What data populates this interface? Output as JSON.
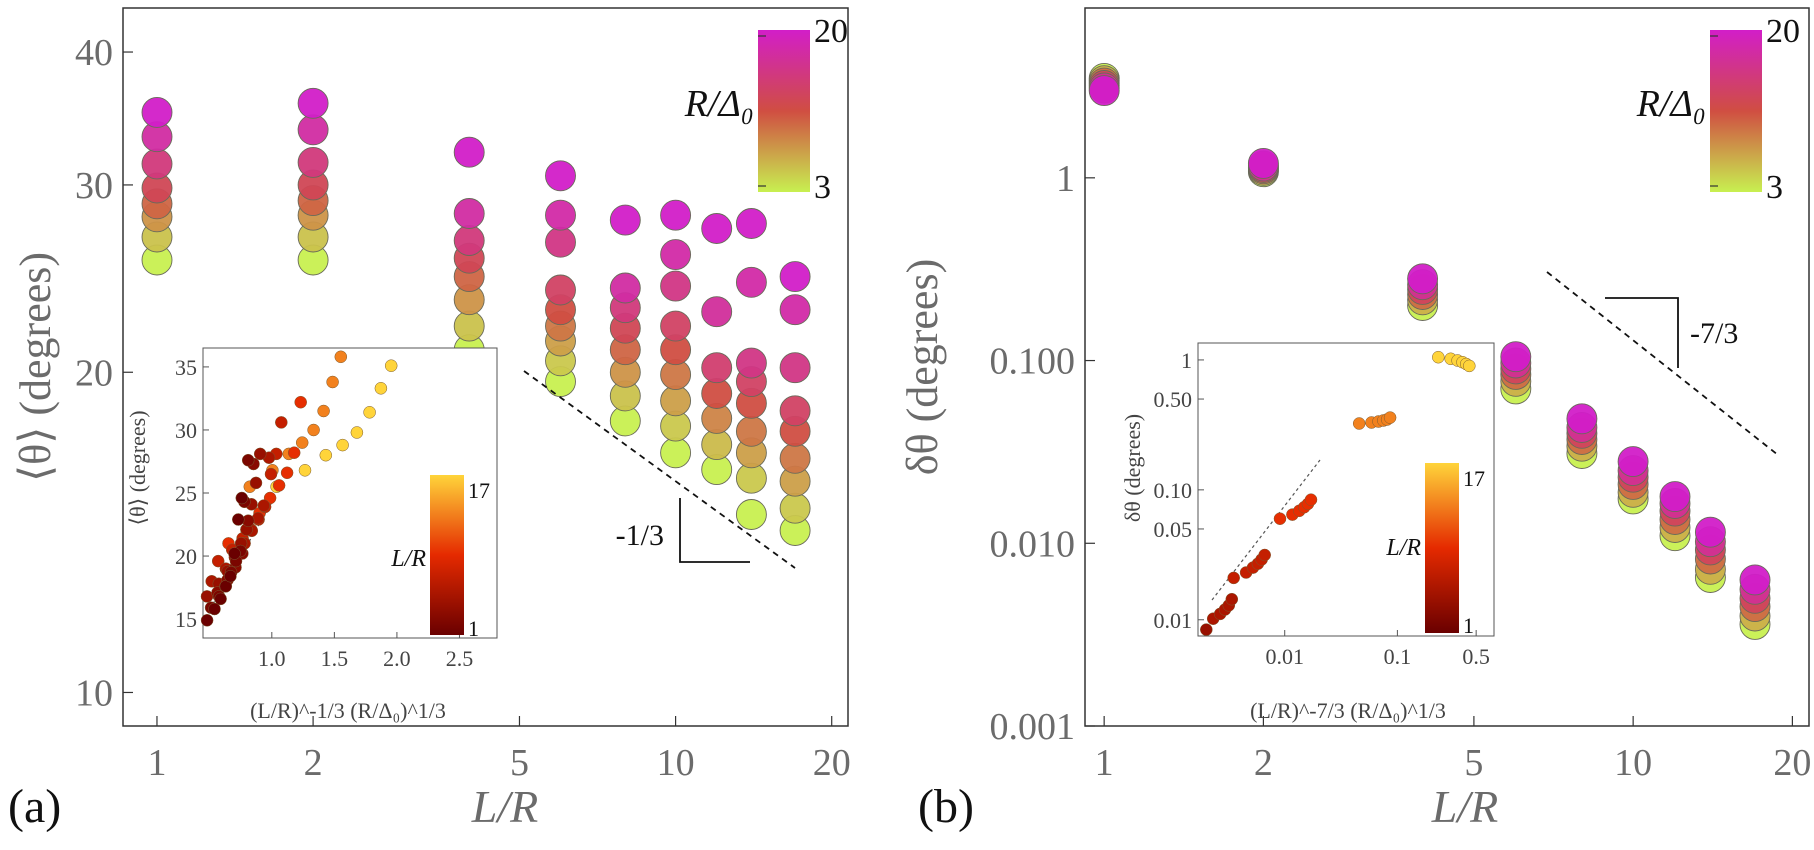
{
  "chart_data": [
    {
      "id": "a",
      "type": "scatter",
      "panel_label": "(a)",
      "xlabel": "L/R",
      "ylabel": "⟨θ⟩ (degrees)",
      "xscale": "log",
      "yscale": "log",
      "xlim": [
        0.86,
        21.5
      ],
      "ylim": [
        9.3,
        44
      ],
      "xticks": [
        {
          "v": 1,
          "label": "1"
        },
        {
          "v": 2,
          "label": "2"
        },
        {
          "v": 5,
          "label": "5"
        },
        {
          "v": 10,
          "label": "10"
        },
        {
          "v": 20,
          "label": "20"
        }
      ],
      "yticks": [
        {
          "v": 10,
          "label": "10"
        },
        {
          "v": 20,
          "label": "20"
        },
        {
          "v": 30,
          "label": "30"
        },
        {
          "v": 40,
          "label": "40"
        }
      ],
      "colorbar": {
        "label": "R/Δ₀",
        "min_label": "3",
        "max_label": "20",
        "colors": [
          "#c8f050",
          "#d04e42",
          "#d21ec8"
        ]
      },
      "slope": {
        "label": "-1/3"
      },
      "series": [
        {
          "x": 1,
          "y": [
            25.5,
            26.8,
            28.0,
            28.8,
            29.8,
            31.4,
            33.3,
            35.1
          ]
        },
        {
          "x": 2,
          "y": [
            25.5,
            26.8,
            28.1,
            29.0,
            30.0,
            31.5,
            33.8,
            35.8
          ]
        },
        {
          "x": 4,
          "y": [
            21.0,
            22.1,
            23.4,
            24.6,
            25.6,
            26.6,
            28.2,
            32.2
          ]
        },
        {
          "x": 6,
          "y": [
            19.6,
            20.5,
            21.4,
            22.1,
            22.9,
            23.9,
            26.5,
            28.1,
            30.6
          ]
        },
        {
          "x": 8,
          "y": [
            18.0,
            19.0,
            20.0,
            21.0,
            22.0,
            23.0,
            24.0,
            27.8
          ]
        },
        {
          "x": 10,
          "y": [
            16.8,
            17.8,
            18.8,
            19.9,
            21.0,
            22.1,
            24.1,
            25.8,
            28.1
          ]
        },
        {
          "x": 12,
          "y": [
            16.2,
            17.1,
            18.1,
            19.1,
            20.2,
            22.8,
            27.3
          ]
        },
        {
          "x": 14,
          "y": [
            14.7,
            15.9,
            16.8,
            17.6,
            18.7,
            19.6,
            20.4,
            24.3,
            27.6
          ]
        },
        {
          "x": 17,
          "y": [
            14.2,
            14.9,
            15.8,
            16.6,
            17.6,
            18.4,
            20.2,
            22.9,
            24.6
          ]
        }
      ],
      "inset": {
        "type": "scatter",
        "xlabel": "(L/R)^-1/3 (R/Δ₀)^1/3",
        "ylabel": "⟨θ⟩ (degrees)",
        "xticks": [
          {
            "v": 1.0,
            "label": "1.0"
          },
          {
            "v": 1.5,
            "label": "1.5"
          },
          {
            "v": 2.0,
            "label": "2.0"
          },
          {
            "v": 2.5,
            "label": "2.5"
          }
        ],
        "yticks": [
          {
            "v": 15,
            "label": "15"
          },
          {
            "v": 20,
            "label": "20"
          },
          {
            "v": 25,
            "label": "25"
          },
          {
            "v": 30,
            "label": "30"
          },
          {
            "v": 35,
            "label": "35"
          }
        ],
        "colorbar": {
          "label": "L/R",
          "min_label": "1",
          "max_label": "17",
          "colors": [
            "#6a0000",
            "#e52a00",
            "#ffd43a"
          ]
        }
      }
    },
    {
      "id": "b",
      "type": "scatter",
      "panel_label": "(b)",
      "xlabel": "L/R",
      "ylabel": "δθ (degrees)",
      "xscale": "log",
      "yscale": "log",
      "xlim": [
        0.92,
        21.5
      ],
      "ylim": [
        0.001,
        8.5
      ],
      "xticks": [
        {
          "v": 1,
          "label": "1"
        },
        {
          "v": 2,
          "label": "2"
        },
        {
          "v": 5,
          "label": "5"
        },
        {
          "v": 10,
          "label": "10"
        },
        {
          "v": 20,
          "label": "20"
        }
      ],
      "yticks": [
        {
          "v": 0.001,
          "label": "0.001"
        },
        {
          "v": 0.01,
          "label": "0.010"
        },
        {
          "v": 0.1,
          "label": "0.100"
        },
        {
          "v": 1,
          "label": "1"
        }
      ],
      "colorbar": {
        "label": "R/Δ₀",
        "min_label": "3",
        "max_label": "20",
        "colors": [
          "#c8f050",
          "#d04e42",
          "#d21ec8"
        ]
      },
      "slope": {
        "label": "-7/3"
      },
      "series": [
        {
          "x": 1,
          "y": [
            3.5,
            3.4,
            3.3,
            3.2,
            3.1,
            3.0
          ]
        },
        {
          "x": 2,
          "y": [
            1.08,
            1.1,
            1.12,
            1.14,
            1.16,
            1.2
          ]
        },
        {
          "x": 4,
          "y": [
            0.2,
            0.215,
            0.23,
            0.245,
            0.26,
            0.28
          ]
        },
        {
          "x": 6,
          "y": [
            0.07,
            0.077,
            0.084,
            0.09,
            0.097,
            0.105
          ]
        },
        {
          "x": 8,
          "y": [
            0.031,
            0.034,
            0.037,
            0.04,
            0.043,
            0.048
          ]
        },
        {
          "x": 10,
          "y": [
            0.0175,
            0.019,
            0.021,
            0.023,
            0.025,
            0.028
          ]
        },
        {
          "x": 12,
          "y": [
            0.011,
            0.0122,
            0.0135,
            0.015,
            0.0165,
            0.018
          ]
        },
        {
          "x": 14,
          "y": [
            0.0065,
            0.0072,
            0.0082,
            0.0092,
            0.0102,
            0.0115
          ]
        },
        {
          "x": 17,
          "y": [
            0.0036,
            0.004,
            0.0045,
            0.005,
            0.0056,
            0.0063
          ]
        }
      ],
      "inset": {
        "type": "scatter",
        "xlabel": "(L/R)^-7/3 (R/Δ₀)^1/3",
        "ylabel": "δθ (degrees)",
        "xticks": [
          {
            "v": 0.01,
            "label": "0.01"
          },
          {
            "v": 0.1,
            "label": "0.1"
          },
          {
            "v": 0.5,
            "label": "0.5"
          }
        ],
        "yticks": [
          {
            "v": 0.01,
            "label": "0.01"
          },
          {
            "v": 0.05,
            "label": "0.05"
          },
          {
            "v": 0.1,
            "label": "0.10"
          },
          {
            "v": 0.5,
            "label": "0.50"
          },
          {
            "v": 1,
            "label": "1"
          }
        ],
        "colorbar": {
          "label": "L/R",
          "min_label": "1",
          "max_label": "17",
          "colors": [
            "#6a0000",
            "#e52a00",
            "#ffd43a"
          ]
        }
      }
    }
  ]
}
